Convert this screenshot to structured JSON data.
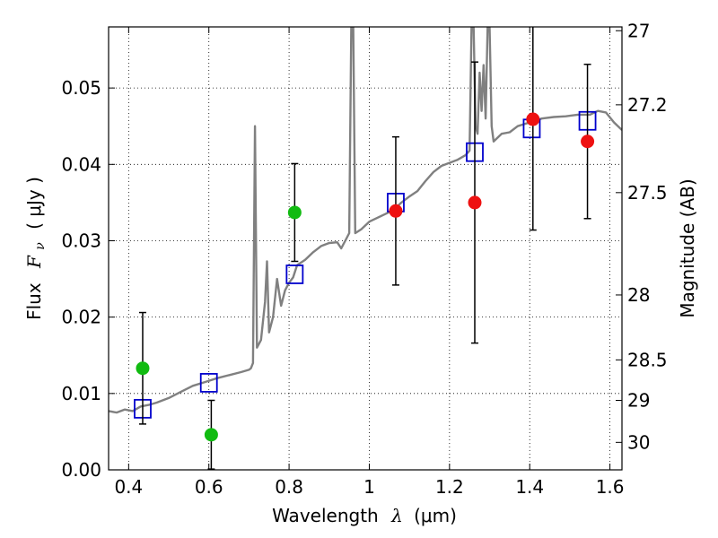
{
  "chart_data": {
    "type": "scatter",
    "xlabel_prefix": "Wavelength",
    "xlabel_symbol": "λ",
    "xlabel_units": "(μm)",
    "ylabel_prefix": "Flux",
    "ylabel_symbol": "F",
    "ylabel_subscript": "ν",
    "ylabel_units": "( μJy )",
    "y2label": "Magnitude (AB)",
    "xlim": [
      0.35,
      1.63
    ],
    "ylim": [
      0.0,
      0.058
    ],
    "grid": true,
    "x_ticks": [
      0.4,
      0.6,
      0.8,
      1.0,
      1.2,
      1.4,
      1.6
    ],
    "x_tick_labels": [
      "0.4",
      "0.6",
      "0.8",
      "1",
      "1.2",
      "1.4",
      "1.6"
    ],
    "y_ticks": [
      0.0,
      0.01,
      0.02,
      0.03,
      0.04,
      0.05
    ],
    "y_tick_labels": [
      "0.00",
      "0.01",
      "0.02",
      "0.03",
      "0.04",
      "0.05"
    ],
    "mag_ticks": [
      {
        "label": "27",
        "flux": 0.0575
      },
      {
        "label": "27.2",
        "flux": 0.0478
      },
      {
        "label": "27.5",
        "flux": 0.0363
      },
      {
        "label": "28",
        "flux": 0.0229
      },
      {
        "label": "28.5",
        "flux": 0.0144
      },
      {
        "label": "29",
        "flux": 0.0091
      },
      {
        "label": "30",
        "flux": 0.0036
      }
    ],
    "colors": {
      "model": "#808080",
      "box": "#0000cc",
      "green": "#11bb11",
      "red": "#ee1111",
      "errorbar": "#000000"
    },
    "model_spectrum": {
      "name": "template SED",
      "points": [
        [
          0.35,
          0.0077
        ],
        [
          0.37,
          0.0075
        ],
        [
          0.39,
          0.0079
        ],
        [
          0.41,
          0.0077
        ],
        [
          0.43,
          0.0083
        ],
        [
          0.45,
          0.0085
        ],
        [
          0.47,
          0.0088
        ],
        [
          0.5,
          0.0094
        ],
        [
          0.53,
          0.0102
        ],
        [
          0.56,
          0.011
        ],
        [
          0.59,
          0.0115
        ],
        [
          0.62,
          0.012
        ],
        [
          0.65,
          0.0124
        ],
        [
          0.68,
          0.0128
        ],
        [
          0.7,
          0.0131
        ],
        [
          0.705,
          0.0133
        ],
        [
          0.71,
          0.014
        ],
        [
          0.715,
          0.045
        ],
        [
          0.72,
          0.016
        ],
        [
          0.73,
          0.017
        ],
        [
          0.74,
          0.022
        ],
        [
          0.745,
          0.0273
        ],
        [
          0.75,
          0.018
        ],
        [
          0.76,
          0.02
        ],
        [
          0.77,
          0.025
        ],
        [
          0.78,
          0.0215
        ],
        [
          0.79,
          0.0235
        ],
        [
          0.8,
          0.0245
        ],
        [
          0.81,
          0.0252
        ],
        [
          0.82,
          0.0268
        ],
        [
          0.84,
          0.0275
        ],
        [
          0.86,
          0.0285
        ],
        [
          0.88,
          0.0293
        ],
        [
          0.9,
          0.0297
        ],
        [
          0.92,
          0.0298
        ],
        [
          0.93,
          0.029
        ],
        [
          0.94,
          0.03
        ],
        [
          0.95,
          0.031
        ],
        [
          0.955,
          0.058
        ],
        [
          0.96,
          0.058
        ],
        [
          0.965,
          0.031
        ],
        [
          0.98,
          0.0315
        ],
        [
          1.0,
          0.0325
        ],
        [
          1.02,
          0.033
        ],
        [
          1.04,
          0.0335
        ],
        [
          1.06,
          0.034
        ],
        [
          1.08,
          0.035
        ],
        [
          1.1,
          0.0358
        ],
        [
          1.12,
          0.0365
        ],
        [
          1.14,
          0.0378
        ],
        [
          1.16,
          0.039
        ],
        [
          1.18,
          0.0398
        ],
        [
          1.2,
          0.0402
        ],
        [
          1.22,
          0.0406
        ],
        [
          1.24,
          0.0412
        ],
        [
          1.25,
          0.0418
        ],
        [
          1.255,
          0.058
        ],
        [
          1.26,
          0.058
        ],
        [
          1.265,
          0.045
        ],
        [
          1.27,
          0.044
        ],
        [
          1.275,
          0.052
        ],
        [
          1.28,
          0.047
        ],
        [
          1.285,
          0.053
        ],
        [
          1.29,
          0.046
        ],
        [
          1.295,
          0.058
        ],
        [
          1.3,
          0.058
        ],
        [
          1.305,
          0.045
        ],
        [
          1.31,
          0.043
        ],
        [
          1.33,
          0.044
        ],
        [
          1.35,
          0.0442
        ],
        [
          1.37,
          0.045
        ],
        [
          1.4,
          0.0455
        ],
        [
          1.43,
          0.046
        ],
        [
          1.46,
          0.0462
        ],
        [
          1.49,
          0.0463
        ],
        [
          1.52,
          0.0465
        ],
        [
          1.55,
          0.0465
        ],
        [
          1.57,
          0.047
        ],
        [
          1.59,
          0.0468
        ],
        [
          1.61,
          0.0455
        ],
        [
          1.63,
          0.0445
        ]
      ]
    },
    "series": [
      {
        "name": "model-photometry",
        "marker": "open-square",
        "x": [
          0.435,
          0.6,
          0.814,
          1.066,
          1.263,
          1.405,
          1.544
        ],
        "y": [
          0.008,
          0.0114,
          0.0256,
          0.035,
          0.0416,
          0.0447,
          0.0457
        ]
      },
      {
        "name": "observed-flux-green",
        "marker": "filled-circle",
        "x": [
          0.435,
          0.606,
          0.814
        ],
        "y": [
          0.0133,
          0.0046,
          0.0337
        ],
        "yerr": [
          0.0073,
          0.0045,
          0.0064
        ]
      },
      {
        "name": "observed-flux-red",
        "marker": "filled-circle",
        "x": [
          1.066,
          1.263,
          1.408,
          1.544
        ],
        "y": [
          0.0339,
          0.035,
          0.0459,
          0.043
        ],
        "yerr": [
          0.0097,
          0.0184,
          0.0145,
          0.0101
        ]
      }
    ]
  }
}
